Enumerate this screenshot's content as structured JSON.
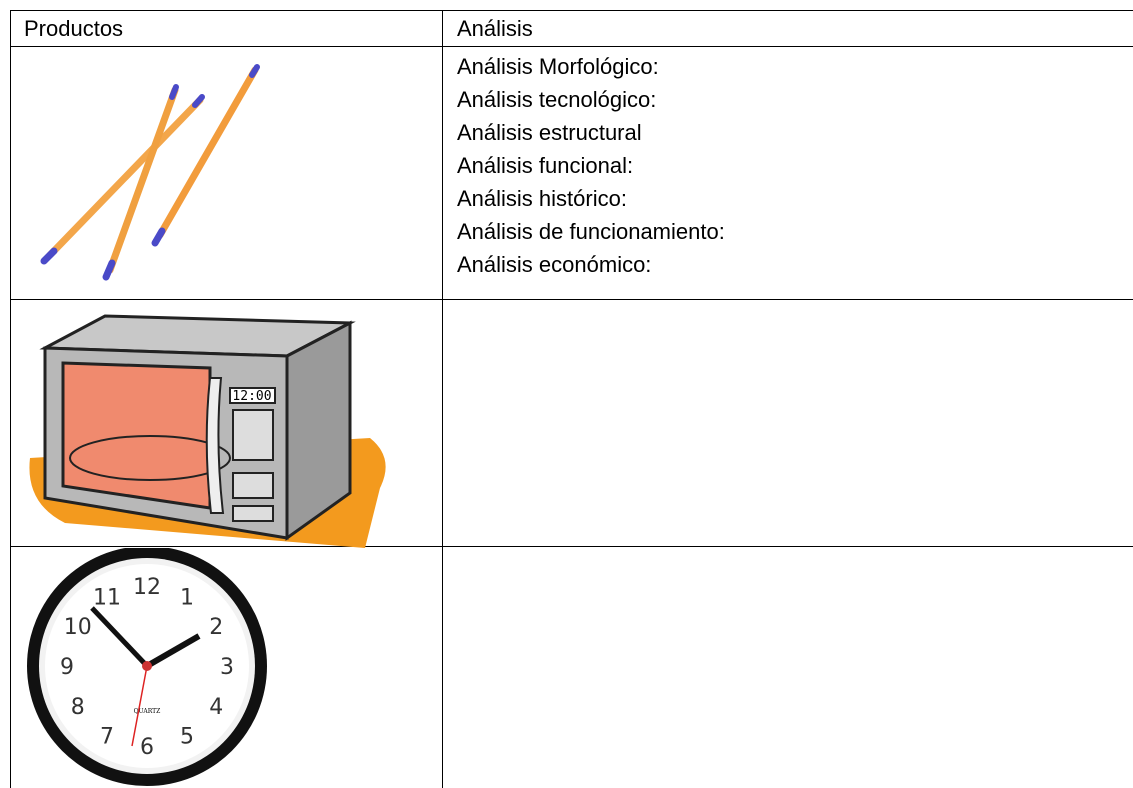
{
  "table": {
    "header": [
      "Productos",
      "Análisis"
    ],
    "rows": [
      {
        "analysis": [
          "Análisis Morfológico:",
          "Análisis tecnológico:",
          "Análisis estructural",
          "Análisis funcional:",
          "Análisis histórico:",
          "Análisis de funcionamiento:",
          "Análisis económico:"
        ]
      }
    ]
  },
  "images": {
    "microwave_display": "12:00",
    "clock_numbers": [
      "12",
      "1",
      "2",
      "3",
      "4",
      "5",
      "6",
      "7",
      "8",
      "9",
      "10",
      "11"
    ],
    "clock_brand": "QUARTZ"
  }
}
